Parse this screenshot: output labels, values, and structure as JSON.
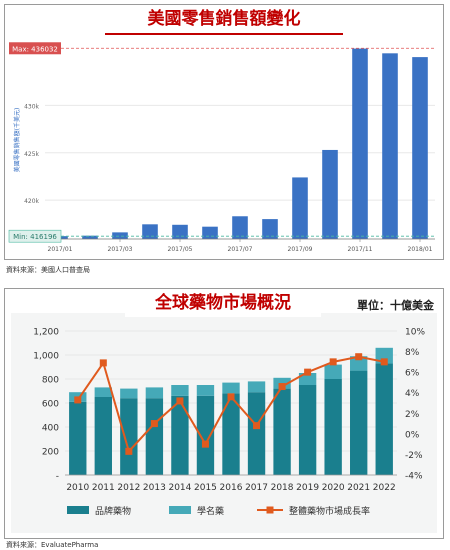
{
  "chart_data": [
    {
      "type": "bar",
      "title": "美國零售銷售額變化",
      "ylabel": "美國零售銷售額(千美元)",
      "source": "資料來源：美國人口普查局",
      "x": [
        "2017/01",
        "2017/02",
        "2017/03",
        "2017/04",
        "2017/05",
        "2017/06",
        "2017/07",
        "2017/08",
        "2017/09",
        "2017/10",
        "2017/11",
        "2017/12",
        "2018/01"
      ],
      "xtick_labels": [
        "2017/01",
        "2017/03",
        "2017/05",
        "2017/07",
        "2017/09",
        "2017/11",
        "2018/01"
      ],
      "values": [
        416200,
        416250,
        416600,
        417450,
        417400,
        417200,
        418300,
        418000,
        422400,
        425300,
        436000,
        435500,
        435100
      ],
      "ylim": [
        415900,
        436800
      ],
      "yticks": [
        420000,
        425000,
        430000
      ],
      "ytick_labels": [
        "420k",
        "425k",
        "430k"
      ],
      "max_label": "Max: 436032",
      "min_label": "Min: 416196",
      "max_value": 436032,
      "min_value": 416196,
      "colors": {
        "bar": "#3a72c4",
        "max_line": "#e05050",
        "min_line": "#4ab8a0"
      }
    },
    {
      "type": "bar",
      "title": "全球藥物市場概況",
      "unit_label": "單位：十億美金",
      "source": "資料來源：EvaluatePharma",
      "categories": [
        "2010",
        "2011",
        "2012",
        "2013",
        "2014",
        "2015",
        "2016",
        "2017",
        "2018",
        "2019",
        "2020",
        "2021",
        "2022"
      ],
      "stacked": true,
      "series": [
        {
          "name": "品牌藥物",
          "axis": "left",
          "color": "#1a7f8e",
          "values": [
            610,
            650,
            640,
            640,
            660,
            660,
            680,
            690,
            720,
            750,
            800,
            870,
            930
          ]
        },
        {
          "name": "學名藥",
          "axis": "left",
          "color": "#45a9b8",
          "values": [
            80,
            80,
            80,
            90,
            90,
            90,
            90,
            90,
            90,
            100,
            120,
            120,
            130
          ]
        },
        {
          "name": "整體藥物市場成長率",
          "type": "line",
          "axis": "right",
          "color": "#e05a1e",
          "values": [
            3.3,
            6.9,
            -1.7,
            1.0,
            3.2,
            -1.0,
            3.6,
            0.8,
            4.6,
            6.0,
            7.0,
            7.5,
            7.0
          ]
        }
      ],
      "ylim_left": [
        0,
        1200
      ],
      "ylim_right": [
        -4,
        10
      ],
      "yticks_left": [
        "-",
        "200",
        "400",
        "600",
        "800",
        "1,000",
        "1,200"
      ],
      "yticks_right": [
        "-4%",
        "-2%",
        "0%",
        "2%",
        "4%",
        "6%",
        "8%",
        "10%"
      ],
      "legend_position": "bottom"
    }
  ]
}
